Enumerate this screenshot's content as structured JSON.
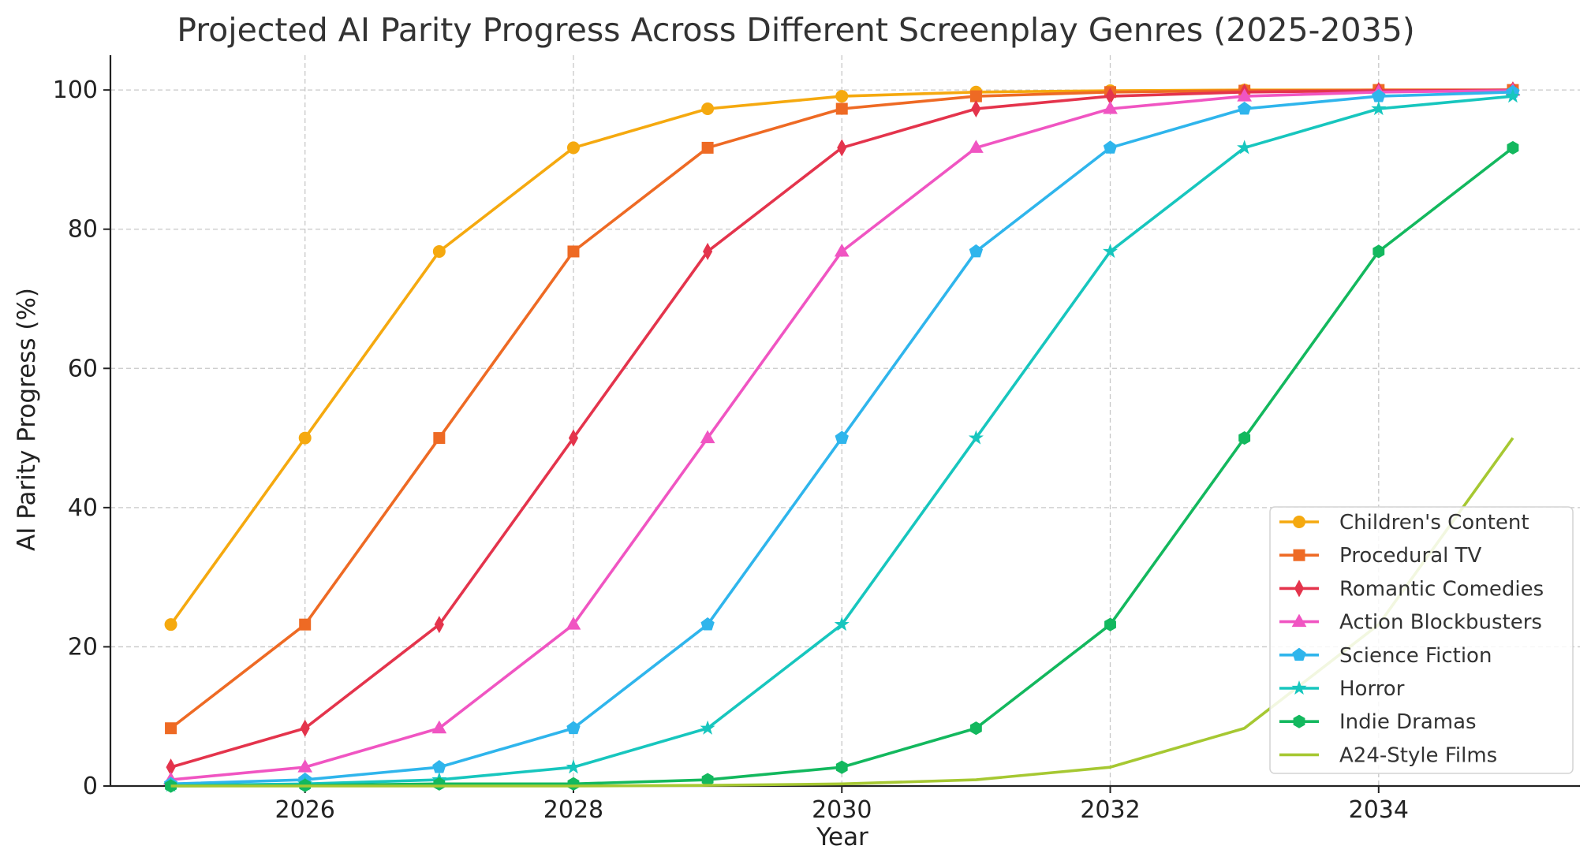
{
  "chart_data": {
    "type": "line",
    "title": "Projected AI Parity Progress Across Different Screenplay Genres (2025-2035)",
    "xlabel": "Year",
    "ylabel": "AI Parity Progress (%)",
    "x": [
      2025,
      2026,
      2027,
      2028,
      2029,
      2030,
      2031,
      2032,
      2033,
      2034,
      2035
    ],
    "xlim": [
      2024.55,
      2035.5
    ],
    "ylim": [
      0,
      105
    ],
    "xticks": [
      "2026",
      "2028",
      "2030",
      "2032",
      "2034"
    ],
    "yticks": [
      "0",
      "20",
      "40",
      "60",
      "80",
      "100"
    ],
    "grid": true,
    "legend_position": "lower-right",
    "series": [
      {
        "name": "Children's Content",
        "color": "#F5A90F",
        "marker": "circle",
        "values": [
          23.2,
          50,
          76.8,
          91.7,
          97.3,
          99.1,
          99.7,
          99.9,
          100,
          100,
          100
        ]
      },
      {
        "name": "Procedural TV",
        "color": "#EE6A24",
        "marker": "square",
        "values": [
          8.3,
          23.2,
          50,
          76.8,
          91.7,
          97.3,
          99.1,
          99.7,
          99.9,
          100,
          100
        ]
      },
      {
        "name": "Romantic Comedies",
        "color": "#E4344C",
        "marker": "thin-diamond",
        "values": [
          2.7,
          8.3,
          23.2,
          50,
          76.8,
          91.7,
          97.3,
          99.1,
          99.7,
          99.9,
          100
        ]
      },
      {
        "name": "Action Blockbusters",
        "color": "#F055C2",
        "marker": "triangle",
        "values": [
          0.9,
          2.7,
          8.3,
          23.2,
          50,
          76.8,
          91.7,
          97.3,
          99.1,
          99.7,
          99.9
        ]
      },
      {
        "name": "Science Fiction",
        "color": "#2FB5EC",
        "marker": "pentagon",
        "values": [
          0.3,
          0.9,
          2.7,
          8.3,
          23.2,
          50,
          76.8,
          91.7,
          97.3,
          99.1,
          99.7
        ]
      },
      {
        "name": "Horror",
        "color": "#17C6BE",
        "marker": "star",
        "values": [
          0.1,
          0.3,
          0.9,
          2.7,
          8.3,
          23.2,
          50,
          76.8,
          91.7,
          97.3,
          99.1
        ]
      },
      {
        "name": "Indie Dramas",
        "color": "#13B85E",
        "marker": "hexagon",
        "values": [
          0,
          0.1,
          0.3,
          0.3,
          0.9,
          2.7,
          8.3,
          23.2,
          50,
          76.8,
          91.7
        ]
      },
      {
        "name": "A24-Style Films",
        "color": "#A6C832",
        "marker": "none",
        "values": [
          0,
          0,
          0,
          0,
          0.1,
          0.3,
          0.9,
          2.7,
          8.3,
          23.2,
          50
        ]
      }
    ]
  }
}
